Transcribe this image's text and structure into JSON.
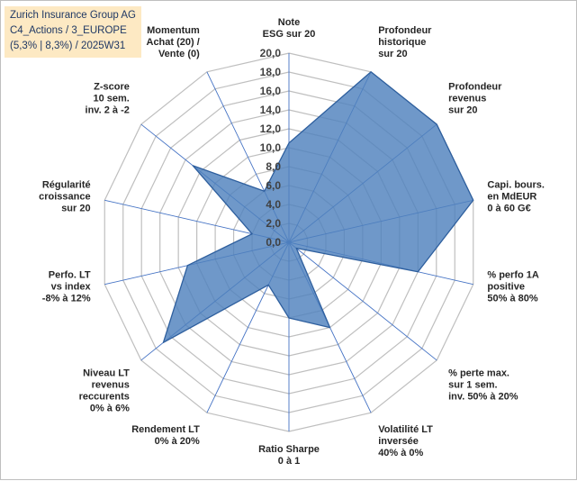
{
  "header": {
    "line1": "Zurich Insurance Group AG",
    "line2": "C4_Actions / 3_EUROPE",
    "line3": "(5,3% | 8,3%) / 2025W31"
  },
  "colors": {
    "fill": "#4f81bd",
    "stroke": "#2e5f9e",
    "grid": "#bfbfbf",
    "spoke": "#4472c4",
    "title_bg": "#fde9c3"
  },
  "chart_data": {
    "type": "radar",
    "range": [
      0,
      20
    ],
    "tick_step": 2,
    "tick_labels": [
      "0,0",
      "2,0",
      "4,0",
      "6,0",
      "8,0",
      "10,0",
      "12,0",
      "14,0",
      "16,0",
      "18,0",
      "20,0"
    ],
    "axes": [
      [
        "Note",
        "ESG sur 20"
      ],
      [
        "Profondeur",
        "historique",
        "sur 20"
      ],
      [
        "Profondeur",
        "revenus",
        "sur 20"
      ],
      [
        "Capi. bours.",
        "en MdEUR",
        "0 à 60 G€"
      ],
      [
        "% perfo 1A",
        "positive",
        "50% à 80%"
      ],
      [
        "% perte max.",
        "sur 1 sem.",
        "inv. 50% à 20%"
      ],
      [
        "Volatilité LT",
        "inversée",
        "40% à 0%"
      ],
      [
        "Ratio Sharpe",
        "0 à 1"
      ],
      [
        "Rendement LT",
        "0% à 20%"
      ],
      [
        "Niveau LT",
        "revenus",
        "reccurents",
        "0% à 6%"
      ],
      [
        "Perfo. LT",
        "vs index",
        "-8% à 12%"
      ],
      [
        "Régularité",
        "croissance",
        "sur 20"
      ],
      [
        "Z-score",
        "10 sem.",
        "inv. 2 à -2"
      ],
      [
        "Momentum",
        "Achat (20) /",
        "Vente (0)"
      ]
    ],
    "series": [
      {
        "values": [
          10.5,
          20,
          20,
          20,
          14,
          1,
          10,
          8,
          5,
          17,
          11,
          4,
          13,
          6
        ]
      }
    ],
    "grid": true,
    "legend": "none"
  }
}
